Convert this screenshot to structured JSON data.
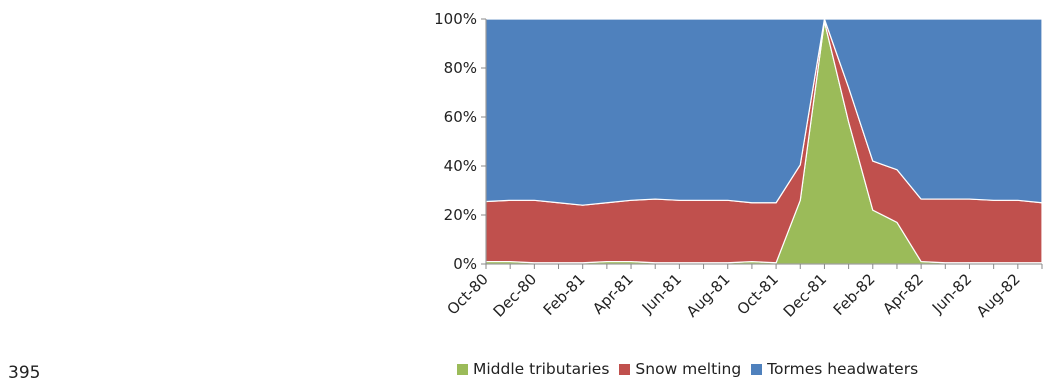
{
  "page_number": "395",
  "chart_data": {
    "type": "area",
    "stacked": "100%",
    "categories": [
      "Oct-80",
      "Nov-80",
      "Dec-80",
      "Jan-81",
      "Feb-81",
      "Mar-81",
      "Apr-81",
      "May-81",
      "Jun-81",
      "Jul-81",
      "Aug-81",
      "Sep-81",
      "Oct-81",
      "Nov-81",
      "Dec-81",
      "Jan-82",
      "Feb-82",
      "Mar-82",
      "Apr-82",
      "May-82",
      "Jun-82",
      "Jul-82",
      "Aug-82",
      "Sep-82"
    ],
    "tick_labels": [
      "Oct-80",
      "Dec-80",
      "Feb-81",
      "Apr-81",
      "Jun-81",
      "Aug-81",
      "Oct-81",
      "Dec-81",
      "Feb-82",
      "Apr-82",
      "Jun-82",
      "Aug-82"
    ],
    "yticks": [
      "0%",
      "20%",
      "40%",
      "60%",
      "80%",
      "100%"
    ],
    "ylim": [
      0,
      100
    ],
    "series": [
      {
        "name": "Middle tributaries",
        "color": "#9bbb59",
        "values": [
          1,
          1,
          0.5,
          0.5,
          0.5,
          1,
          1,
          0.5,
          0.5,
          0.5,
          0.5,
          1,
          0.5,
          26,
          99,
          58,
          22,
          17,
          1,
          0.5,
          0.5,
          0.5,
          0.5,
          0.5
        ]
      },
      {
        "name": "Snow melting",
        "color": "#c0504d",
        "values": [
          24.5,
          25,
          25.5,
          24.5,
          23.5,
          24,
          25,
          26,
          25.5,
          25.5,
          25.5,
          24,
          24.5,
          14.5,
          1,
          14,
          20,
          21.5,
          25.5,
          26,
          26,
          25.5,
          25.5,
          24.5
        ]
      },
      {
        "name": "Tormes headwaters",
        "color": "#4f81bd",
        "values": [
          74.5,
          74,
          74,
          75,
          76,
          75,
          74,
          73.5,
          74,
          74,
          74,
          75,
          75,
          59.5,
          0,
          28,
          58,
          61.5,
          73.5,
          73.5,
          73.5,
          74,
          74,
          75
        ]
      }
    ],
    "legend_position": "bottom"
  }
}
